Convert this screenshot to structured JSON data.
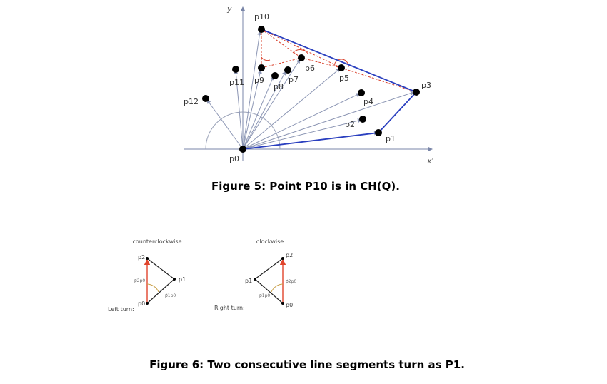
{
  "figure5": {
    "caption": "Figure 5: Point P10 is in CH(Q).",
    "axis_x_label": "x'",
    "axis_y_label": "y",
    "points": {
      "p0": "p0",
      "p1": "p1",
      "p2": "p2",
      "p3": "p3",
      "p4": "p4",
      "p5": "p5",
      "p6": "p6",
      "p7": "p7",
      "p8": "p8",
      "p9": "p9",
      "p10": "p10",
      "p11": "p11",
      "p12": "p12"
    }
  },
  "figure6": {
    "caption": "Figure 6: Two consecutive line segments turn as P1.",
    "left": {
      "title": "counterclockwise",
      "turn_label": "Left turn:",
      "p0": "p0",
      "p1": "p1",
      "p2": "p2",
      "v1": "p⃗2p0",
      "v2": "p⃗1p0"
    },
    "right": {
      "title": "clockwise",
      "turn_label": "Right turn:",
      "p0": "p0",
      "p1": "p1",
      "p2": "p2",
      "v1": "p⃗2p0",
      "v2": "p⃗1p0"
    }
  },
  "colors": {
    "hull": "#2a3fbf",
    "ray": "#8c96b4",
    "dashed": "#d9402b",
    "red_edge": "#e0442c",
    "point": "#000000"
  }
}
